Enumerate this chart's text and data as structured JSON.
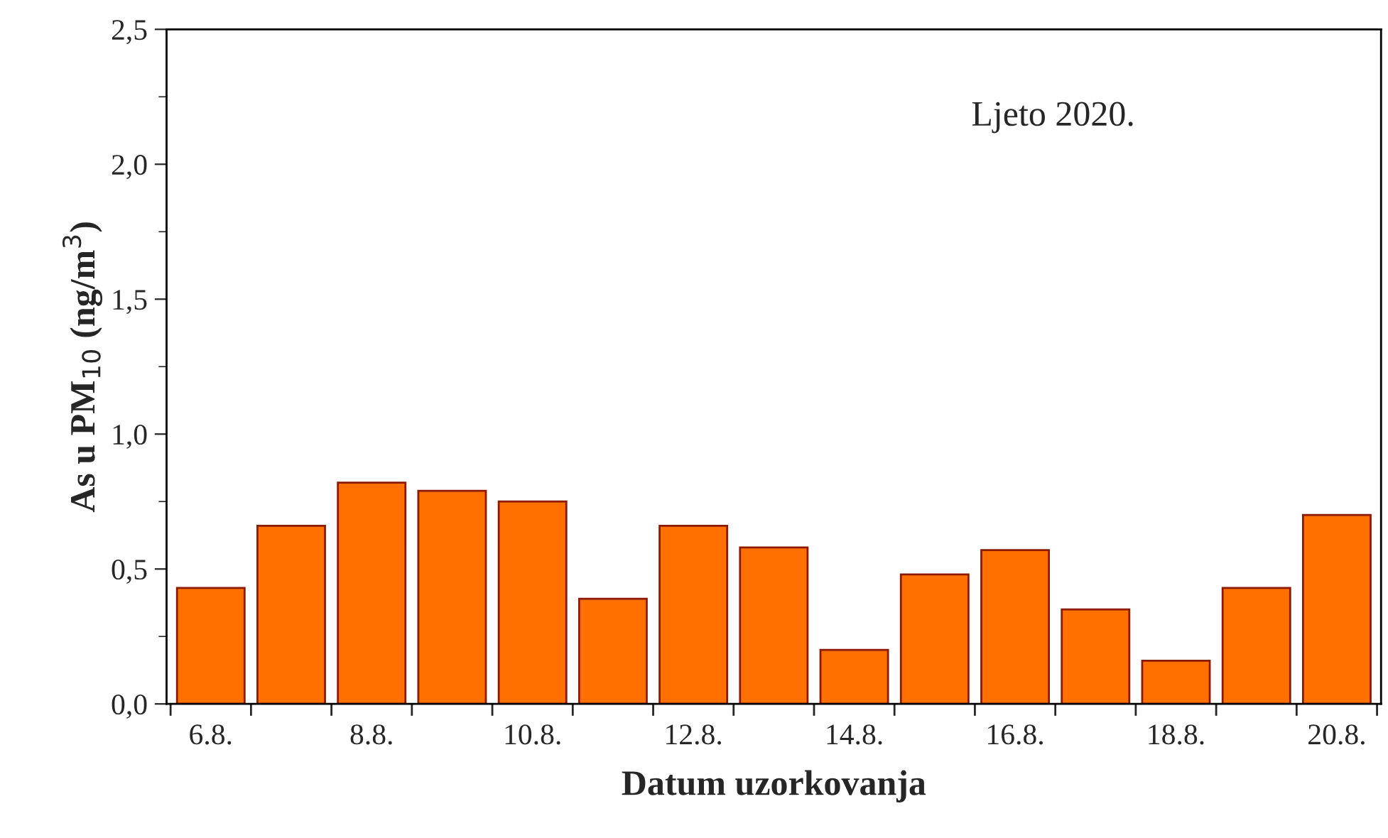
{
  "chart_data": {
    "type": "bar",
    "xlabel": "Datum uzorkovanja",
    "ylabel": "As u PM$_{10}$ (ng/m$^{3}$)",
    "annotations": [
      "Ljeto 2020."
    ],
    "categories": [
      "6.8.",
      null,
      "8.8.",
      null,
      "10.8.",
      null,
      "12.8.",
      null,
      "14.8.",
      null,
      "16.8.",
      null,
      "18.8.",
      null,
      "20.8."
    ],
    "values": [
      0.43,
      0.66,
      0.82,
      0.79,
      0.75,
      0.39,
      0.66,
      0.58,
      0.2,
      0.48,
      0.57,
      0.35,
      0.16,
      0.43,
      0.7
    ],
    "color": "#ff7000",
    "ylim": [
      0,
      2.5
    ],
    "yticks": [
      {
        "value": 0,
        "label": "0,0"
      },
      {
        "value": 0.5,
        "label": "0,5"
      },
      {
        "value": 1.0,
        "label": "1,0"
      },
      {
        "value": 1.5,
        "label": "1,5"
      },
      {
        "value": 2.0,
        "label": "2,0"
      },
      {
        "value": 2.5,
        "label": "2,5"
      }
    ],
    "grid": false,
    "legend": false
  }
}
